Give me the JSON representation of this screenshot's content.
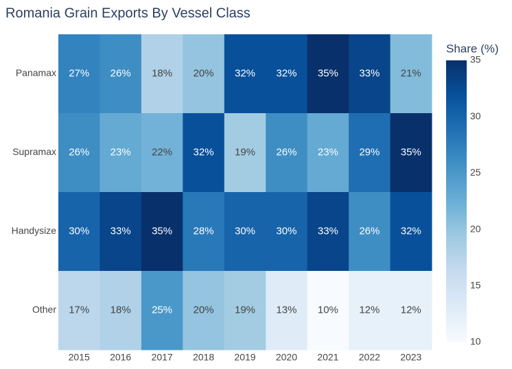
{
  "chart_data": {
    "type": "heatmap",
    "title": "Romania Grain Exports By Vessel Class",
    "x": [
      "2015",
      "2016",
      "2017",
      "2018",
      "2019",
      "2020",
      "2021",
      "2022",
      "2023"
    ],
    "y": [
      "Panamax",
      "Supramax",
      "Handysize",
      "Other"
    ],
    "z": [
      [
        27,
        26,
        18,
        20,
        32,
        32,
        35,
        33,
        21
      ],
      [
        26,
        23,
        22,
        32,
        19,
        26,
        23,
        29,
        35
      ],
      [
        30,
        33,
        35,
        28,
        30,
        30,
        33,
        26,
        32
      ],
      [
        17,
        18,
        25,
        20,
        19,
        13,
        10,
        12,
        12
      ]
    ],
    "value_suffix": "%",
    "colorscale": "Blues",
    "colorbar": {
      "title": "Share (%)",
      "range": [
        10,
        35
      ],
      "ticks": [
        10,
        15,
        20,
        25,
        30,
        35
      ]
    }
  }
}
